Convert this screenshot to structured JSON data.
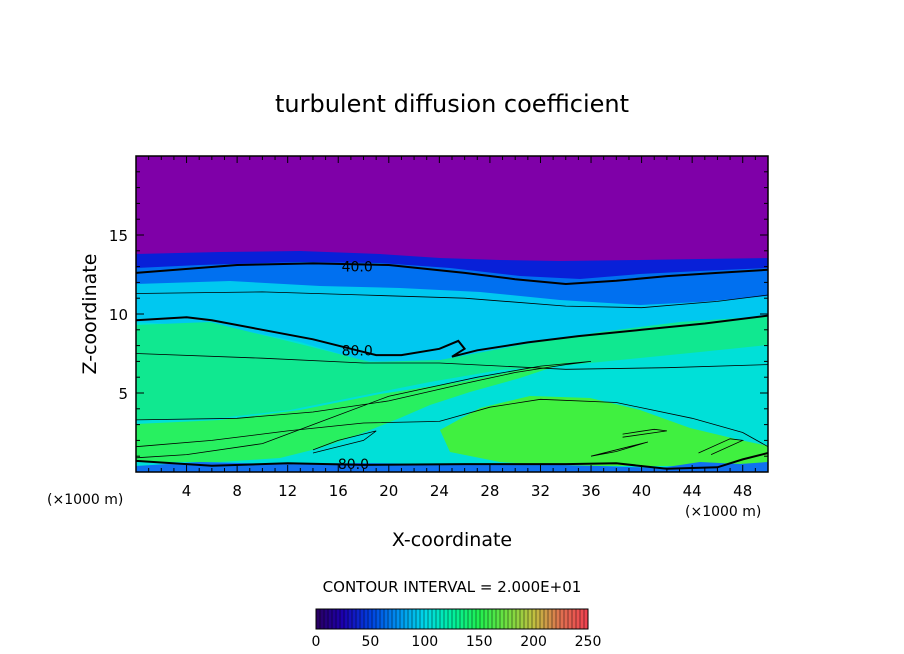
{
  "chart_data": {
    "type": "contour",
    "title": "turbulent diffusion coefficient",
    "xlabel": "X-coordinate",
    "ylabel": "Z-coordinate",
    "x_unit_left": "(×1000 m)",
    "x_unit_right": "(×1000 m)",
    "xlim": [
      0,
      50
    ],
    "ylim": [
      0,
      20
    ],
    "x_ticks": [
      4,
      8,
      12,
      16,
      20,
      24,
      28,
      32,
      36,
      40,
      44,
      48
    ],
    "y_ticks": [
      5,
      10,
      15
    ],
    "contour_interval_label": "CONTOUR INTERVAL = 2.000E+01",
    "contour_interval": 20,
    "contour_labels": [
      {
        "text": "40.0",
        "value": 40,
        "x": 17.5,
        "y": 13.0
      },
      {
        "text": "80.0",
        "value": 80,
        "x": 17.5,
        "y": 7.7
      },
      {
        "text": "80.0",
        "value": 80,
        "x": 17.2,
        "y": 0.5
      }
    ],
    "contours": [
      {
        "value": 40,
        "major": true,
        "points": [
          [
            0,
            12.6
          ],
          [
            8,
            13.1
          ],
          [
            14,
            13.2
          ],
          [
            20,
            13.1
          ],
          [
            26,
            12.6
          ],
          [
            30,
            12.2
          ],
          [
            34,
            11.9
          ],
          [
            38,
            12.1
          ],
          [
            42,
            12.4
          ],
          [
            46,
            12.6
          ],
          [
            50,
            12.8
          ]
        ]
      },
      {
        "value": 60,
        "major": false,
        "points": [
          [
            0,
            11.3
          ],
          [
            10,
            11.4
          ],
          [
            18,
            11.2
          ],
          [
            26,
            11.0
          ],
          [
            34,
            10.5
          ],
          [
            40,
            10.4
          ],
          [
            46,
            10.8
          ],
          [
            50,
            11.2
          ]
        ]
      },
      {
        "value": 80,
        "major": true,
        "points": [
          [
            0,
            9.6
          ],
          [
            4,
            9.8
          ],
          [
            6,
            9.6
          ],
          [
            10,
            9.0
          ],
          [
            14,
            8.4
          ],
          [
            17,
            7.8
          ],
          [
            19,
            7.4
          ],
          [
            21,
            7.4
          ],
          [
            24,
            7.8
          ],
          [
            25.5,
            8.3
          ],
          [
            26,
            7.8
          ],
          [
            25,
            7.3
          ],
          [
            27,
            7.7
          ],
          [
            31,
            8.2
          ],
          [
            35,
            8.6
          ],
          [
            40,
            9.0
          ],
          [
            45,
            9.4
          ],
          [
            50,
            9.9
          ]
        ]
      },
      {
        "value": 100,
        "major": false,
        "points": [
          [
            0,
            7.5
          ],
          [
            10,
            7.2
          ],
          [
            18,
            6.9
          ],
          [
            24,
            6.9
          ],
          [
            34,
            6.5
          ],
          [
            42,
            6.6
          ],
          [
            50,
            6.8
          ]
        ]
      },
      {
        "value": 120,
        "major": false,
        "points": [
          [
            0,
            3.3
          ],
          [
            8,
            3.4
          ],
          [
            14,
            3.8
          ],
          [
            20,
            4.5
          ],
          [
            26,
            5.6
          ],
          [
            30,
            6.3
          ],
          [
            34,
            6.8
          ],
          [
            36,
            7.0
          ],
          [
            32,
            6.7
          ],
          [
            27,
            6.0
          ],
          [
            20,
            4.8
          ],
          [
            14,
            3.0
          ],
          [
            10,
            1.8
          ],
          [
            4,
            1.1
          ],
          [
            0,
            0.9
          ]
        ]
      },
      {
        "value": 140,
        "major": false,
        "points": [
          [
            0,
            1.6
          ],
          [
            6,
            2.0
          ],
          [
            12,
            2.6
          ],
          [
            18,
            3.1
          ],
          [
            24,
            3.2
          ],
          [
            28,
            4.1
          ],
          [
            32,
            4.6
          ],
          [
            38,
            4.4
          ],
          [
            44,
            3.4
          ],
          [
            48,
            2.5
          ],
          [
            50,
            1.6
          ]
        ]
      },
      {
        "value": 160,
        "major": false,
        "points": [
          [
            14,
            1.2
          ],
          [
            18,
            2.0
          ],
          [
            19,
            2.6
          ],
          [
            16,
            2.0
          ],
          [
            14,
            1.4
          ]
        ]
      },
      {
        "value": 160,
        "major": false,
        "points": [
          [
            36,
            1.0
          ],
          [
            39,
            1.6
          ],
          [
            40.5,
            1.9
          ],
          [
            38,
            1.3
          ],
          [
            36,
            1.0
          ]
        ]
      },
      {
        "value": 160,
        "major": false,
        "points": [
          [
            38.5,
            2.2
          ],
          [
            42,
            2.6
          ],
          [
            41,
            2.7
          ],
          [
            38.5,
            2.4
          ]
        ]
      },
      {
        "value": 160,
        "major": false,
        "points": [
          [
            44.5,
            1.2
          ],
          [
            47,
            2.1
          ],
          [
            48,
            2.0
          ],
          [
            45.5,
            1.1
          ]
        ]
      },
      {
        "value": 80,
        "major": true,
        "points": [
          [
            0,
            0.7
          ],
          [
            6,
            0.4
          ],
          [
            12,
            0.55
          ],
          [
            18,
            0.45
          ],
          [
            26,
            0.5
          ],
          [
            34,
            0.5
          ],
          [
            38,
            0.55
          ],
          [
            42,
            0.2
          ],
          [
            46,
            0.3
          ],
          [
            48,
            0.8
          ],
          [
            50,
            1.2
          ]
        ]
      }
    ],
    "colorbar": {
      "min": 0,
      "max": 250,
      "ticks": [
        0,
        50,
        100,
        150,
        200,
        250
      ],
      "colors": [
        "#2a0060",
        "#1c00b0",
        "#0040e0",
        "#0090f0",
        "#00d8e8",
        "#00f0a0",
        "#20f050",
        "#70e040",
        "#c0c040",
        "#e07050",
        "#f04050"
      ]
    }
  }
}
